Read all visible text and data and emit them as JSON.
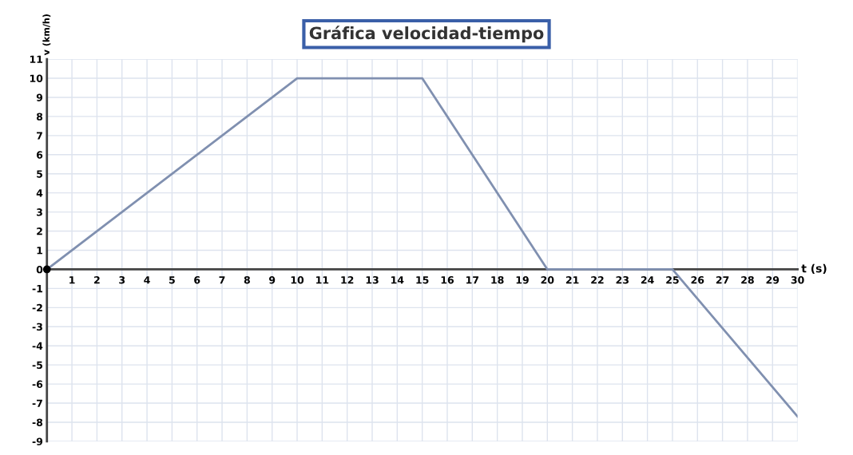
{
  "chart_data": {
    "type": "line",
    "title": "Gráfica velocidad-tiempo",
    "xlabel": "t (s)",
    "ylabel": "v (km/h)",
    "x": [
      0,
      10,
      15,
      20,
      25,
      30
    ],
    "series": [
      {
        "color": "#8090b0",
        "values": [
          0,
          10,
          10,
          0,
          0,
          -7.7
        ]
      }
    ],
    "xlim": [
      0,
      30
    ],
    "xticks": [
      1,
      2,
      3,
      4,
      5,
      6,
      7,
      8,
      9,
      10,
      11,
      12,
      13,
      14,
      15,
      16,
      17,
      18,
      19,
      20,
      21,
      22,
      23,
      24,
      25,
      26,
      27,
      28,
      29,
      30
    ],
    "ylim": [
      -9,
      11
    ],
    "yticks": [
      -9,
      -8,
      -7,
      -6,
      -5,
      -4,
      -3,
      -2,
      -1,
      0,
      1,
      2,
      3,
      4,
      5,
      6,
      7,
      8,
      9,
      10,
      11
    ],
    "grid": true,
    "legend": false,
    "marker": "none",
    "line_style": "solid"
  }
}
